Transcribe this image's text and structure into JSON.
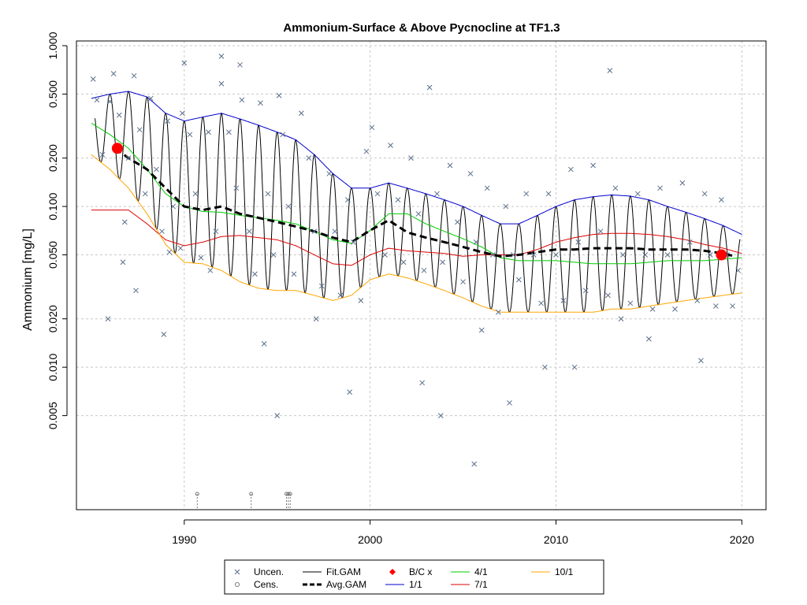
{
  "chart_data": {
    "type": "scatter",
    "title": "Ammonium-Surface & Above Pycnocline at TF1.3",
    "xlabel": "",
    "ylabel": "Ammonium [mg/L]",
    "y_scale": "log",
    "xlim": [
      1984.2,
      2021.3
    ],
    "ylim": [
      0.0013,
      1.07
    ],
    "x_ticks": [
      1990,
      2000,
      2010,
      2020
    ],
    "x_tick_labels": [
      "1990",
      "2000",
      "2010",
      "2020"
    ],
    "y_ticks": [
      0.005,
      0.01,
      0.02,
      0.05,
      0.1,
      0.2,
      0.5,
      1.0
    ],
    "y_tick_labels": [
      "0.005",
      "0.010",
      "0.020",
      "0.050",
      "0.100",
      "0.200",
      "0.500",
      "1.000"
    ],
    "grid": true,
    "legend": {
      "position": "bottom-center",
      "entries": [
        {
          "label": "Uncen.",
          "symbol": "x",
          "color": "#5a6e8a"
        },
        {
          "label": "Cens.",
          "symbol": "o",
          "color": "#777777"
        },
        {
          "label": "Fit.GAM",
          "symbol": "line",
          "color": "#000000"
        },
        {
          "label": "Avg.GAM",
          "symbol": "dashed",
          "color": "#000000"
        },
        {
          "label": "B/C x",
          "symbol": "diamond",
          "color": "#ff0000"
        },
        {
          "label": "1/1",
          "symbol": "line",
          "color": "#0000cc"
        },
        {
          "label": "4/1",
          "symbol": "line",
          "color": "#00cc00"
        },
        {
          "label": "7/1",
          "symbol": "line",
          "color": "#dd0000"
        },
        {
          "label": "10/1",
          "symbol": "line",
          "color": "#ffa500"
        }
      ]
    },
    "series": [
      {
        "name": "1/1",
        "color": "#0000cc",
        "x": [
          1985,
          1986,
          1987,
          1988,
          1989,
          1990,
          1991,
          1992,
          1993,
          1994,
          1995,
          1996,
          1997,
          1998,
          1999,
          2000,
          2001,
          2002,
          2003,
          2004,
          2005,
          2006,
          2007,
          2008,
          2009,
          2010,
          2011,
          2012,
          2013,
          2014,
          2015,
          2016,
          2017,
          2018,
          2019,
          2020
        ],
        "y": [
          0.47,
          0.5,
          0.52,
          0.48,
          0.38,
          0.34,
          0.36,
          0.38,
          0.35,
          0.32,
          0.29,
          0.26,
          0.21,
          0.16,
          0.13,
          0.13,
          0.14,
          0.13,
          0.12,
          0.11,
          0.1,
          0.088,
          0.078,
          0.078,
          0.088,
          0.1,
          0.11,
          0.115,
          0.118,
          0.116,
          0.11,
          0.1,
          0.092,
          0.084,
          0.076,
          0.067
        ]
      },
      {
        "name": "4/1",
        "color": "#00cc00",
        "x": [
          1985,
          1986,
          1987,
          1988,
          1989,
          1990,
          1991,
          1992,
          1993,
          1994,
          1995,
          1996,
          1997,
          1998,
          1999,
          2000,
          2001,
          2002,
          2003,
          2004,
          2005,
          2006,
          2007,
          2008,
          2009,
          2010,
          2011,
          2012,
          2013,
          2014,
          2015,
          2016,
          2017,
          2018,
          2019,
          2020
        ],
        "y": [
          0.33,
          0.28,
          0.23,
          0.17,
          0.12,
          0.1,
          0.093,
          0.092,
          0.088,
          0.085,
          0.082,
          0.078,
          0.07,
          0.062,
          0.059,
          0.071,
          0.09,
          0.09,
          0.078,
          0.07,
          0.063,
          0.056,
          0.048,
          0.046,
          0.046,
          0.046,
          0.045,
          0.044,
          0.044,
          0.044,
          0.045,
          0.046,
          0.046,
          0.046,
          0.047,
          0.048
        ]
      },
      {
        "name": "7/1",
        "color": "#dd0000",
        "x": [
          1985,
          1986,
          1987,
          1988,
          1989,
          1990,
          1991,
          1992,
          1993,
          1994,
          1995,
          1996,
          1997,
          1998,
          1999,
          2000,
          2001,
          2002,
          2003,
          2004,
          2005,
          2006,
          2007,
          2008,
          2009,
          2010,
          2011,
          2012,
          2013,
          2014,
          2015,
          2016,
          2017,
          2018,
          2019,
          2020
        ],
        "y": [
          0.095,
          0.095,
          0.095,
          0.078,
          0.062,
          0.057,
          0.06,
          0.065,
          0.066,
          0.064,
          0.062,
          0.057,
          0.05,
          0.044,
          0.043,
          0.05,
          0.055,
          0.053,
          0.052,
          0.051,
          0.049,
          0.05,
          0.05,
          0.05,
          0.054,
          0.06,
          0.064,
          0.067,
          0.068,
          0.068,
          0.067,
          0.065,
          0.062,
          0.058,
          0.055,
          0.051
        ]
      },
      {
        "name": "10/1",
        "color": "#ffa500",
        "x": [
          1985,
          1986,
          1987,
          1988,
          1989,
          1990,
          1991,
          1992,
          1993,
          1994,
          1995,
          1996,
          1997,
          1998,
          1999,
          2000,
          2001,
          2002,
          2003,
          2004,
          2005,
          2006,
          2007,
          2008,
          2009,
          2010,
          2011,
          2012,
          2013,
          2014,
          2015,
          2016,
          2017,
          2018,
          2019,
          2020
        ],
        "y": [
          0.21,
          0.17,
          0.13,
          0.09,
          0.058,
          0.045,
          0.044,
          0.04,
          0.034,
          0.031,
          0.03,
          0.03,
          0.028,
          0.026,
          0.028,
          0.035,
          0.038,
          0.036,
          0.033,
          0.03,
          0.027,
          0.024,
          0.022,
          0.022,
          0.022,
          0.022,
          0.022,
          0.022,
          0.023,
          0.023,
          0.024,
          0.025,
          0.026,
          0.027,
          0.028,
          0.029
        ]
      },
      {
        "name": "Avg.GAM",
        "color": "#000000",
        "dashed": true,
        "x": [
          1986.3,
          1987,
          1988,
          1989,
          1990,
          1991,
          1992,
          1993,
          1994,
          1995,
          1996,
          1997,
          1998,
          1999,
          2000,
          2001,
          2002,
          2003,
          2004,
          2005,
          2006,
          2007,
          2008,
          2009,
          2010,
          2011,
          2012,
          2013,
          2014,
          2015,
          2016,
          2017,
          2018,
          2019,
          2019.6
        ],
        "y": [
          0.23,
          0.2,
          0.17,
          0.13,
          0.1,
          0.095,
          0.1,
          0.09,
          0.085,
          0.08,
          0.075,
          0.07,
          0.064,
          0.06,
          0.071,
          0.082,
          0.069,
          0.064,
          0.06,
          0.056,
          0.052,
          0.049,
          0.05,
          0.052,
          0.054,
          0.054,
          0.055,
          0.055,
          0.055,
          0.054,
          0.054,
          0.054,
          0.053,
          0.051,
          0.049
        ]
      }
    ],
    "fit_gam": {
      "name": "Fit.GAM",
      "color": "#000000",
      "x_start": 1985.2,
      "x_end": 2019.9,
      "upper_envelope": "1/1",
      "lower_envelope": "10/1"
    },
    "bc_points": {
      "name": "B/C x",
      "color": "#ff0000",
      "x": [
        1986.4,
        2018.9
      ],
      "y": [
        0.23,
        0.05
      ]
    },
    "censored": {
      "name": "Cens.",
      "color": "#777777",
      "x": [
        1990.7,
        1993.6,
        1995.5,
        1995.6,
        1995.7
      ]
    },
    "uncensored_points": {
      "name": "Uncen.",
      "color": "#5a6e8a",
      "x": [
        1985.1,
        1985.3,
        1985.6,
        1986.0,
        1986.2,
        1986.5,
        1986.8,
        1987.0,
        1987.3,
        1987.6,
        1987.9,
        1988.2,
        1988.5,
        1988.8,
        1989.1,
        1989.4,
        1989.8,
        1990.0,
        1990.3,
        1990.6,
        1990.9,
        1991.3,
        1991.7,
        1992.0,
        1992.4,
        1992.8,
        1993.1,
        1993.5,
        1993.8,
        1994.1,
        1994.5,
        1994.8,
        1995.1,
        1995.3,
        1995.6,
        1995.9,
        1996.3,
        1996.7,
        1997.0,
        1997.4,
        1997.8,
        1998.1,
        1998.4,
        1998.8,
        1999.1,
        1999.5,
        1999.8,
        2000.1,
        2000.4,
        2000.8,
        2001.1,
        2001.5,
        2001.8,
        2002.2,
        2002.6,
        2002.9,
        2003.2,
        2003.6,
        2003.9,
        2004.3,
        2004.7,
        2005.0,
        2005.4,
        2005.7,
        2006.0,
        2006.3,
        2006.6,
        2006.9,
        2007.3,
        2007.7,
        2008.0,
        2008.4,
        2008.8,
        2009.2,
        2009.6,
        2010.0,
        2010.4,
        2010.8,
        2011.2,
        2011.6,
        2012.0,
        2012.4,
        2012.8,
        2013.2,
        2013.6,
        2014.0,
        2014.4,
        2014.8,
        2015.2,
        2015.6,
        2016.0,
        2016.4,
        2016.8,
        2017.2,
        2017.6,
        2018.0,
        2018.3,
        2018.6,
        2018.9,
        2019.2,
        2019.5,
        2019.8,
        1992.0,
        1989.9,
        1993.0,
        2012.9,
        1985.9,
        1986.7,
        1987.4,
        1988.9,
        1989.2,
        1991.4,
        1994.3,
        1995.0,
        1997.1,
        1998.9,
        2002.8,
        2003.8,
        2005.6,
        2007.5,
        2009.4,
        2011.0,
        2013.5,
        2015.0,
        2017.8
      ],
      "y": [
        0.62,
        0.46,
        0.21,
        0.45,
        0.67,
        0.37,
        0.08,
        0.2,
        0.65,
        0.3,
        0.12,
        0.47,
        0.17,
        0.07,
        0.34,
        0.1,
        0.055,
        0.78,
        0.28,
        0.12,
        0.048,
        0.29,
        0.07,
        0.58,
        0.29,
        0.13,
        0.46,
        0.07,
        0.038,
        0.44,
        0.12,
        0.05,
        0.49,
        0.28,
        0.1,
        0.038,
        0.38,
        0.2,
        0.07,
        0.032,
        0.16,
        0.07,
        0.028,
        0.11,
        0.06,
        0.026,
        0.22,
        0.31,
        0.12,
        0.05,
        0.24,
        0.11,
        0.045,
        0.2,
        0.09,
        0.04,
        0.55,
        0.12,
        0.045,
        0.18,
        0.08,
        0.034,
        0.16,
        0.06,
        0.017,
        0.13,
        0.05,
        0.022,
        0.1,
        0.05,
        0.035,
        0.12,
        0.05,
        0.025,
        0.12,
        0.05,
        0.026,
        0.17,
        0.06,
        0.03,
        0.18,
        0.07,
        0.028,
        0.13,
        0.05,
        0.025,
        0.12,
        0.05,
        0.023,
        0.13,
        0.05,
        0.023,
        0.14,
        0.06,
        0.026,
        0.12,
        0.05,
        0.024,
        0.11,
        0.05,
        0.024,
        0.04,
        0.86,
        0.38,
        0.76,
        0.7,
        0.02,
        0.045,
        0.03,
        0.016,
        0.052,
        0.04,
        0.014,
        0.005,
        0.02,
        0.007,
        0.008,
        0.005,
        0.0025,
        0.006,
        0.01,
        0.01,
        0.02,
        0.015,
        0.011
      ]
    }
  }
}
